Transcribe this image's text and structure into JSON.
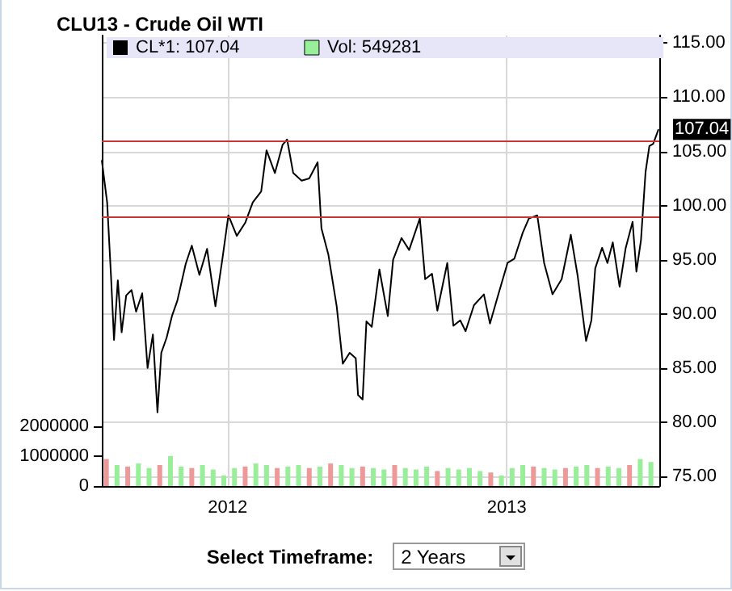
{
  "chart_data": {
    "type": "line",
    "title": "CLU13 - Crude Oil WTI",
    "xlim": [
      "2011-07-20",
      "2013-07-20"
    ],
    "xticks": [
      {
        "value": "2012-01-01",
        "label": "2012"
      },
      {
        "value": "2013-01-01",
        "label": "2013"
      }
    ],
    "ylim": [
      0,
      15000000
    ],
    "yticks": [
      0,
      1000000,
      2000000
    ],
    "y2lim": [
      74.1,
      115.7
    ],
    "y2ticks": [
      {
        "value": 75,
        "label": "75.00"
      },
      {
        "value": 80,
        "label": "80.00"
      },
      {
        "value": 85,
        "label": "85.00"
      },
      {
        "value": 90,
        "label": "90.00"
      },
      {
        "value": 95,
        "label": "95.00"
      },
      {
        "value": 100,
        "label": "100.00"
      },
      {
        "value": 105,
        "label": "105.00"
      },
      {
        "value": 110,
        "label": "110.00"
      },
      {
        "value": 115,
        "label": "115.00"
      }
    ],
    "grid": true,
    "legend": "top left",
    "marker": "none",
    "line_style": "solid",
    "ref_lines": [
      {
        "axis": "y2",
        "value": 105.9,
        "color": "#cc3333"
      },
      {
        "axis": "y2",
        "value": 98.9,
        "color": "#cc3333"
      }
    ],
    "annotations": [
      "Select Timeframe:",
      "2 Years"
    ],
    "series": [
      {
        "name": "Vol: 549281",
        "type": "bar",
        "axis": "y",
        "color": "#99ee99",
        "x": [
          "2011-07-26",
          "2011-08-09",
          "2011-08-23",
          "2011-09-06",
          "2011-09-20",
          "2011-10-04",
          "2011-10-18",
          "2011-11-01",
          "2011-11-15",
          "2011-11-29",
          "2011-12-13",
          "2011-12-27",
          "2012-01-10",
          "2012-01-24",
          "2012-02-07",
          "2012-02-21",
          "2012-03-06",
          "2012-03-20",
          "2012-04-03",
          "2012-04-17",
          "2012-05-01",
          "2012-05-15",
          "2012-05-29",
          "2012-06-12",
          "2012-06-26",
          "2012-07-10",
          "2012-07-24",
          "2012-08-07",
          "2012-08-21",
          "2012-09-04",
          "2012-09-18",
          "2012-10-02",
          "2012-10-16",
          "2012-10-30",
          "2012-11-13",
          "2012-11-27",
          "2012-12-11",
          "2012-12-25",
          "2013-01-08",
          "2013-01-22",
          "2013-02-05",
          "2013-02-19",
          "2013-03-05",
          "2013-03-19",
          "2013-04-02",
          "2013-04-16",
          "2013-04-30",
          "2013-05-14",
          "2013-05-28",
          "2013-06-11",
          "2013-06-25",
          "2013-07-09"
        ],
        "values": [
          900000,
          700000,
          650000,
          750000,
          600000,
          700000,
          1000000,
          650000,
          600000,
          700000,
          550000,
          350000,
          600000,
          650000,
          750000,
          700000,
          600000,
          650000,
          700000,
          600000,
          650000,
          750000,
          700000,
          600000,
          650000,
          600000,
          550000,
          700000,
          600000,
          550000,
          650000,
          500000,
          600000,
          550000,
          600000,
          500000,
          450000,
          350000,
          600000,
          700000,
          650000,
          600000,
          550000,
          600000,
          650000,
          700000,
          600000,
          650000,
          600000,
          700000,
          900000,
          800000
        ],
        "colors": [
          "#ee9999",
          "#99ee99",
          "#ee9999",
          "#99ee99",
          "#99ee99",
          "#ee9999",
          "#99ee99",
          "#99ee99",
          "#ee9999",
          "#99ee99",
          "#99ee99",
          "#99ee99",
          "#99ee99",
          "#ee9999",
          "#99ee99",
          "#99ee99",
          "#ee9999",
          "#99ee99",
          "#99ee99",
          "#ee9999",
          "#99ee99",
          "#ee9999",
          "#99ee99",
          "#99ee99",
          "#ee9999",
          "#99ee99",
          "#99ee99",
          "#ee9999",
          "#99ee99",
          "#99ee99",
          "#99ee99",
          "#ee9999",
          "#99ee99",
          "#99ee99",
          "#99ee99",
          "#99ee99",
          "#ee9999",
          "#99ee99",
          "#99ee99",
          "#99ee99",
          "#ee9999",
          "#99ee99",
          "#99ee99",
          "#ee9999",
          "#99ee99",
          "#99ee99",
          "#ee9999",
          "#99ee99",
          "#99ee99",
          "#ee9999",
          "#99ee99",
          "#99ee99"
        ]
      },
      {
        "name": "CL*1: 107.04",
        "axis": "y2",
        "color": "#000000",
        "x": [
          "2011-07-20",
          "2011-07-27",
          "2011-08-01",
          "2011-08-05",
          "2011-08-10",
          "2011-08-15",
          "2011-08-21",
          "2011-08-28",
          "2011-09-03",
          "2011-09-11",
          "2011-09-18",
          "2011-09-25",
          "2011-10-01",
          "2011-10-06",
          "2011-10-13",
          "2011-10-20",
          "2011-10-27",
          "2011-11-07",
          "2011-11-15",
          "2011-11-25",
          "2011-12-05",
          "2011-12-16",
          "2011-12-25",
          "2012-01-02",
          "2012-01-13",
          "2012-01-24",
          "2012-02-03",
          "2012-02-14",
          "2012-02-21",
          "2012-03-03",
          "2012-03-13",
          "2012-03-19",
          "2012-03-27",
          "2012-04-07",
          "2012-04-17",
          "2012-04-28",
          "2012-05-03",
          "2012-05-12",
          "2012-05-23",
          "2012-05-31",
          "2012-06-09",
          "2012-06-17",
          "2012-06-20",
          "2012-06-26",
          "2012-07-01",
          "2012-07-08",
          "2012-07-18",
          "2012-07-29",
          "2012-08-05",
          "2012-08-16",
          "2012-08-26",
          "2012-09-09",
          "2012-09-16",
          "2012-09-25",
          "2012-10-02",
          "2012-10-15",
          "2012-10-23",
          "2012-11-01",
          "2012-11-08",
          "2012-11-19",
          "2012-12-02",
          "2012-12-10",
          "2012-12-21",
          "2013-01-02",
          "2013-01-11",
          "2013-01-22",
          "2013-01-30",
          "2013-02-10",
          "2013-02-19",
          "2013-03-02",
          "2013-03-14",
          "2013-03-26",
          "2013-04-04",
          "2013-04-15",
          "2013-04-22",
          "2013-04-27",
          "2013-05-06",
          "2013-05-13",
          "2013-05-20",
          "2013-05-29",
          "2013-06-06",
          "2013-06-15",
          "2013-06-20",
          "2013-06-26",
          "2013-07-02",
          "2013-07-07",
          "2013-07-12",
          "2013-07-19"
        ],
        "values": [
          104.2,
          100.3,
          93.6,
          87.6,
          93.1,
          88.3,
          91.7,
          92.2,
          90.2,
          91.9,
          85.0,
          88.1,
          80.9,
          86.4,
          87.8,
          89.8,
          91.2,
          94.6,
          96.3,
          93.6,
          96.0,
          90.7,
          95.0,
          99.1,
          97.2,
          98.4,
          100.3,
          101.3,
          105.1,
          103.0,
          105.6,
          106.1,
          103.0,
          102.3,
          102.5,
          104.0,
          97.9,
          95.5,
          90.7,
          85.4,
          86.4,
          85.9,
          82.5,
          82.1,
          89.3,
          88.8,
          94.1,
          89.8,
          95.0,
          97.0,
          95.9,
          98.8,
          93.2,
          93.7,
          90.3,
          94.7,
          88.9,
          89.4,
          88.4,
          90.8,
          91.8,
          89.1,
          91.8,
          94.7,
          95.1,
          97.5,
          98.8,
          99.1,
          94.7,
          91.8,
          93.2,
          97.3,
          93.5,
          87.5,
          89.4,
          94.2,
          96.1,
          94.7,
          96.6,
          92.5,
          96.1,
          98.5,
          93.9,
          96.8,
          103.1,
          105.5,
          105.7,
          107.04
        ],
        "value_labels": [
          null,
          null,
          null,
          null,
          null,
          null,
          null,
          null,
          null,
          null,
          null,
          null,
          null,
          null,
          null,
          null,
          null,
          null,
          null,
          null,
          null,
          null,
          null,
          null,
          null,
          null,
          null,
          null,
          null,
          null,
          null,
          null,
          null,
          null,
          null,
          null,
          null,
          null,
          null,
          null,
          null,
          null,
          null,
          null,
          null,
          null,
          null,
          null,
          null,
          null,
          null,
          null,
          null,
          null,
          null,
          null,
          null,
          null,
          null,
          null,
          null,
          null,
          null,
          null,
          null,
          null,
          null,
          null,
          null,
          null,
          null,
          null,
          null,
          null,
          null,
          null,
          null,
          null,
          null,
          null,
          null,
          null,
          null,
          null,
          null,
          null,
          null,
          "107.04"
        ]
      }
    ]
  }
}
